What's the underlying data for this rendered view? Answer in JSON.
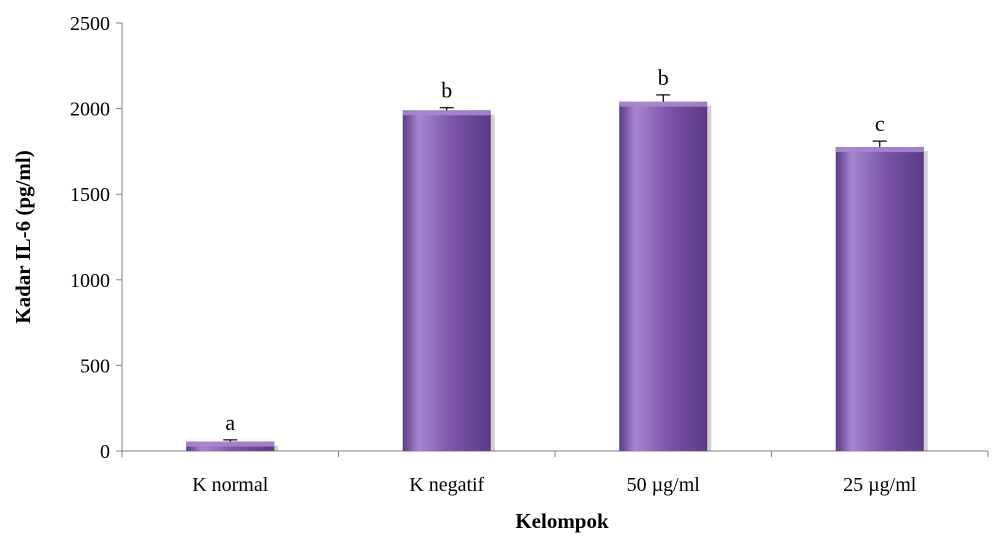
{
  "chart_data": {
    "type": "bar",
    "categories": [
      "K normal",
      "K negatif",
      "50 µg/ml",
      "25 µg/ml"
    ],
    "values": [
      55,
      1990,
      2040,
      1775
    ],
    "errors": [
      10,
      15,
      40,
      35
    ],
    "significance_labels": [
      "a",
      "b",
      "b",
      "c"
    ],
    "xlabel": "Kelompok",
    "ylabel": "Kadar IL-6 (pg/ml)",
    "ylim": [
      0,
      2500
    ],
    "yticks": [
      0,
      500,
      1000,
      1500,
      2000,
      2500
    ],
    "grid": false,
    "legend": "none",
    "bar_color": "#7b55a8",
    "bar_color_light": "#a687cf",
    "bar_color_dark": "#5a3a85"
  }
}
